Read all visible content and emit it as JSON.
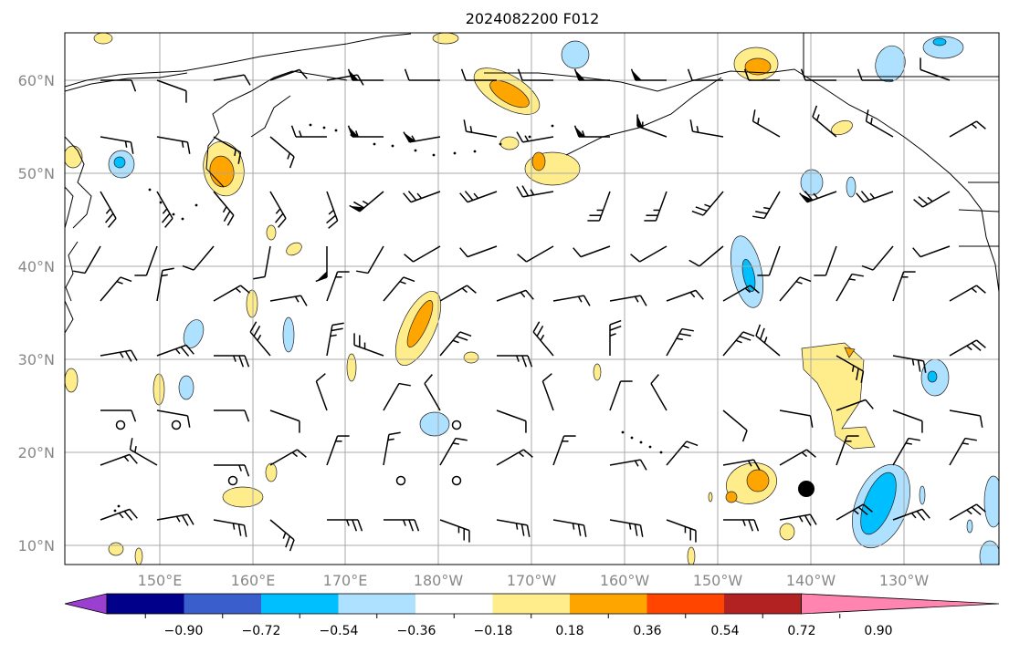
{
  "title": "2024082200 F012",
  "map": {
    "lat_labels": [
      "60°N",
      "50°N",
      "40°N",
      "30°N",
      "20°N",
      "10°N"
    ],
    "lon_labels": [
      "150°E",
      "160°E",
      "170°E",
      "180°W",
      "170°W",
      "160°W",
      "150°W",
      "140°W",
      "130°W"
    ]
  },
  "colorbar": {
    "tick_labels": [
      "−0.90",
      "−0.72",
      "−0.54",
      "−0.36",
      "−0.18",
      "0.18",
      "0.36",
      "0.54",
      "0.72",
      "0.90"
    ],
    "colors": [
      "#9a3fcf",
      "#00008b",
      "#3a5fcd",
      "#00bfff",
      "#aee0ff",
      "#ffffff",
      "#ffec8b",
      "#ffa500",
      "#ff4500",
      "#b22222",
      "#ff85b0"
    ]
  },
  "colors": {
    "grid": "#a8a8a8",
    "coast": "#000000",
    "barb": "#000000"
  }
}
